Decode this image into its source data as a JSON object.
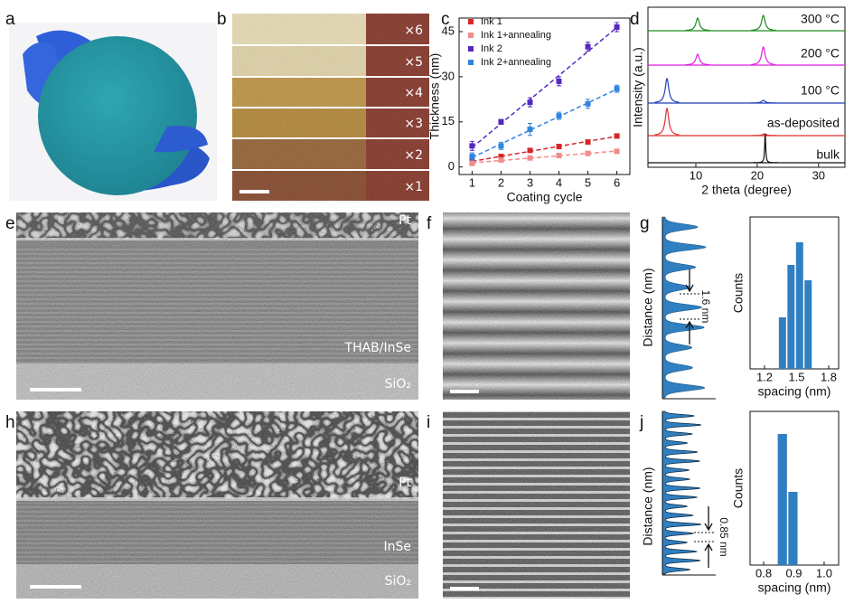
{
  "panel_labels": [
    "a",
    "b",
    "c",
    "d",
    "e",
    "f",
    "g",
    "h",
    "i",
    "j"
  ],
  "b": {
    "labels": [
      "×6",
      "×5",
      "×4",
      "×3",
      "×2",
      "×1"
    ]
  },
  "e": {
    "labels": [
      "Pt",
      "THAB/InSe",
      "SiO₂"
    ]
  },
  "h": {
    "labels": [
      "Pt",
      "InSe",
      "SiO₂"
    ]
  },
  "g_profile": {
    "ylabel": "Distance (nm)",
    "annotation": "1.6 nm"
  },
  "j_profile": {
    "ylabel": "Distance (nm)",
    "annotation": "0.85 nm"
  },
  "chart_data": [
    {
      "type": "line",
      "xlabel": "Coating cycle",
      "ylabel": "Thickness (nm)",
      "x": [
        1,
        2,
        3,
        4,
        5,
        6
      ],
      "xlim": [
        0.55,
        6.45
      ],
      "ylim": [
        -2.5,
        49.5
      ],
      "xticks": [
        1,
        2,
        3,
        4,
        5,
        6
      ],
      "yticks": [
        0,
        15,
        30,
        45
      ],
      "legend": "upper left",
      "fit": true,
      "series": [
        {
          "name": "Ink 1",
          "color": "#d62728",
          "values": [
            1.8,
            3.5,
            5.5,
            6.8,
            8.3,
            10.3
          ],
          "errors": [
            0.5,
            0.6,
            0.6,
            0.7,
            0.6,
            0.7
          ]
        },
        {
          "name": "Ink 1+annealing",
          "color": "#f08c8c",
          "values": [
            1.2,
            2.3,
            3.0,
            3.8,
            4.5,
            5.2
          ],
          "errors": [
            0.4,
            0.4,
            0.5,
            0.5,
            0.5,
            0.5
          ]
        },
        {
          "name": "Ink 2",
          "color": "#5528c0",
          "values": [
            7.0,
            15.0,
            21.5,
            28.5,
            40.0,
            46.5
          ],
          "errors": [
            1.5,
            0.8,
            1.5,
            1.5,
            1.5,
            1.5
          ]
        },
        {
          "name": "Ink 2+annealing",
          "color": "#2f86dc",
          "values": [
            3.5,
            7.0,
            12.5,
            17.0,
            21.0,
            26.0
          ],
          "errors": [
            1.2,
            1.2,
            2.0,
            1.2,
            1.5,
            1.2
          ]
        }
      ]
    },
    {
      "type": "peaks",
      "xlabel": "2 theta (degree)",
      "ylabel": "Intensity (a.u.)",
      "xlim": [
        2.2,
        34.3
      ],
      "xticks": [
        10,
        20,
        30
      ],
      "series": [
        {
          "name": "300 °C",
          "color": "#1e8c1e",
          "x": [
            10.3,
            21.0
          ],
          "values": [
            14,
            17
          ]
        },
        {
          "name": "200 °C",
          "color": "#e020e0",
          "x": [
            10.3,
            21.0
          ],
          "values": [
            12,
            20
          ]
        },
        {
          "name": "100 °C",
          "color": "#1f3fb8",
          "x": [
            5.3,
            21.0
          ],
          "values": [
            27,
            3
          ]
        },
        {
          "name": "as-deposited",
          "color": "#e03030",
          "x": [
            5.3,
            21.2
          ],
          "values": [
            30,
            2
          ]
        },
        {
          "name": "bulk",
          "color": "#111111",
          "x": [
            21.3
          ],
          "values": [
            32
          ]
        }
      ]
    },
    {
      "type": "histogram",
      "xlabel": "spacing (nm)",
      "ylabel": "Counts",
      "color": "#2f7fc1",
      "bins": [
        1.33,
        1.41,
        1.49,
        1.57,
        1.65
      ],
      "values": [
        57,
        115,
        140,
        98
      ],
      "xlim": [
        1.065,
        1.893
      ],
      "ylim": [
        0,
        168
      ],
      "xticks": [
        1.2,
        1.5,
        1.8
      ]
    },
    {
      "type": "histogram",
      "xlabel": "spacing (nm)",
      "ylabel": "Counts",
      "color": "#2f7fc1",
      "bins": [
        0.845,
        0.88,
        0.915
      ],
      "values": [
        145,
        81
      ],
      "xlim": [
        0.755,
        1.048
      ],
      "ylim": [
        0,
        170
      ],
      "xticks": [
        0.8,
        0.9,
        {
          "value": 1.0,
          "label": "1.0"
        }
      ]
    }
  ]
}
